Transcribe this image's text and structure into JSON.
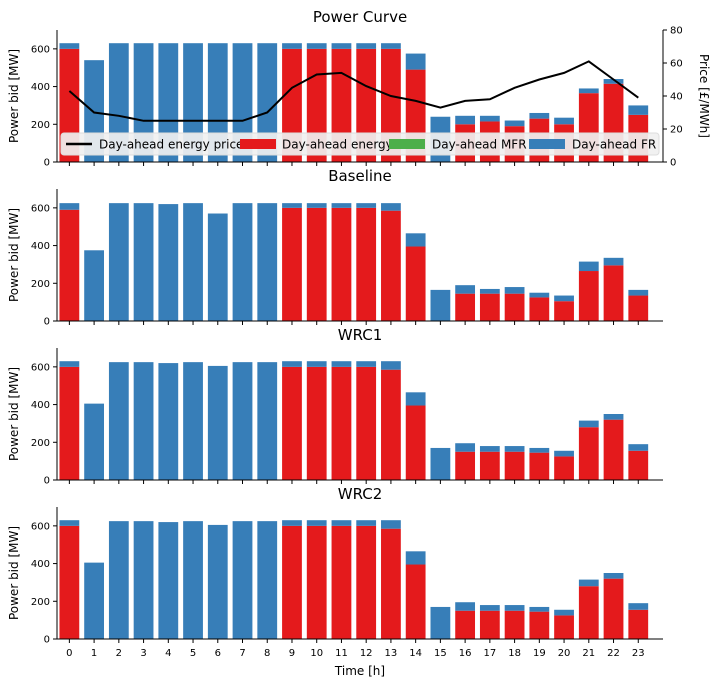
{
  "colors": {
    "energy": "#e41a1c",
    "fr": "#377eb8",
    "mfr": "#4daf4a",
    "price": "#000000",
    "legend_bg": "#f0f0f0"
  },
  "chart_data": [
    {
      "type": "bar",
      "stacked": true,
      "title": "Power Curve",
      "xlabel": "",
      "ylabel": "Power bid [MW]",
      "ylim": [
        0,
        700
      ],
      "yticks": [
        0,
        200,
        400,
        600
      ],
      "categories": [
        "0",
        "1",
        "2",
        "3",
        "4",
        "5",
        "6",
        "7",
        "8",
        "9",
        "10",
        "11",
        "12",
        "13",
        "14",
        "15",
        "16",
        "17",
        "18",
        "19",
        "20",
        "21",
        "22",
        "23"
      ],
      "series": [
        {
          "name": "Day-ahead energy",
          "values": [
            600,
            0,
            0,
            0,
            0,
            0,
            0,
            0,
            0,
            600,
            600,
            600,
            600,
            600,
            490,
            0,
            200,
            215,
            190,
            230,
            200,
            365,
            415,
            250
          ]
        },
        {
          "name": "Day-ahead MFR",
          "values": [
            0,
            0,
            0,
            0,
            0,
            0,
            0,
            0,
            0,
            0,
            0,
            0,
            0,
            0,
            0,
            0,
            0,
            0,
            0,
            0,
            0,
            0,
            0,
            0
          ]
        },
        {
          "name": "Day-ahead FR",
          "values": [
            30,
            540,
            630,
            630,
            630,
            630,
            630,
            630,
            630,
            30,
            30,
            30,
            30,
            30,
            85,
            240,
            45,
            30,
            30,
            30,
            35,
            25,
            25,
            50
          ]
        }
      ],
      "secondary_axis": {
        "ylabel": "Price [£/MWh]",
        "ylim": [
          0,
          80
        ],
        "yticks": [
          0,
          20,
          40,
          60,
          80
        ],
        "series": [
          {
            "name": "Day-ahead energy price",
            "type": "line",
            "values": [
              43,
              30,
              28,
              25,
              25,
              25,
              25,
              25,
              30,
              45,
              53,
              54,
              46,
              40,
              37,
              33,
              37,
              38,
              45,
              50,
              54,
              61,
              50,
              39
            ]
          }
        ]
      },
      "legend": {
        "placement": "lower-center",
        "entries": [
          "Day-ahead energy price",
          "Day-ahead energy",
          "Day-ahead MFR",
          "Day-ahead FR"
        ]
      }
    },
    {
      "type": "bar",
      "stacked": true,
      "title": "Baseline",
      "xlabel": "",
      "ylabel": "Power bid [MW]",
      "ylim": [
        0,
        700
      ],
      "yticks": [
        0,
        200,
        400,
        600
      ],
      "categories": [
        "0",
        "1",
        "2",
        "3",
        "4",
        "5",
        "6",
        "7",
        "8",
        "9",
        "10",
        "11",
        "12",
        "13",
        "14",
        "15",
        "16",
        "17",
        "18",
        "19",
        "20",
        "21",
        "22",
        "23"
      ],
      "series": [
        {
          "name": "Day-ahead energy",
          "values": [
            590,
            0,
            0,
            0,
            0,
            0,
            0,
            0,
            0,
            600,
            600,
            600,
            600,
            585,
            395,
            0,
            145,
            145,
            145,
            125,
            105,
            265,
            295,
            135
          ]
        },
        {
          "name": "Day-ahead MFR",
          "values": [
            0,
            0,
            0,
            0,
            0,
            0,
            0,
            0,
            0,
            0,
            0,
            0,
            0,
            0,
            0,
            0,
            0,
            0,
            0,
            0,
            0,
            0,
            0,
            0
          ]
        },
        {
          "name": "Day-ahead FR",
          "values": [
            35,
            375,
            625,
            625,
            620,
            625,
            570,
            625,
            625,
            25,
            25,
            25,
            25,
            40,
            70,
            165,
            45,
            25,
            35,
            25,
            30,
            50,
            40,
            30
          ]
        }
      ]
    },
    {
      "type": "bar",
      "stacked": true,
      "title": "WRC1",
      "xlabel": "",
      "ylabel": "Power bid [MW]",
      "ylim": [
        0,
        700
      ],
      "yticks": [
        0,
        200,
        400,
        600
      ],
      "categories": [
        "0",
        "1",
        "2",
        "3",
        "4",
        "5",
        "6",
        "7",
        "8",
        "9",
        "10",
        "11",
        "12",
        "13",
        "14",
        "15",
        "16",
        "17",
        "18",
        "19",
        "20",
        "21",
        "22",
        "23"
      ],
      "series": [
        {
          "name": "Day-ahead energy",
          "values": [
            600,
            0,
            0,
            0,
            0,
            0,
            0,
            0,
            0,
            600,
            600,
            600,
            600,
            585,
            395,
            0,
            150,
            150,
            150,
            145,
            125,
            280,
            320,
            155
          ]
        },
        {
          "name": "Day-ahead MFR",
          "values": [
            0,
            0,
            0,
            0,
            0,
            0,
            0,
            0,
            0,
            0,
            0,
            0,
            0,
            0,
            0,
            0,
            0,
            0,
            0,
            0,
            0,
            0,
            0,
            0
          ]
        },
        {
          "name": "Day-ahead FR",
          "values": [
            30,
            405,
            625,
            625,
            620,
            625,
            605,
            625,
            625,
            30,
            30,
            30,
            30,
            45,
            70,
            170,
            45,
            30,
            30,
            25,
            30,
            35,
            30,
            35
          ]
        }
      ]
    },
    {
      "type": "bar",
      "stacked": true,
      "title": "WRC2",
      "xlabel": "Time [h]",
      "ylabel": "Power bid [MW]",
      "ylim": [
        0,
        700
      ],
      "yticks": [
        0,
        200,
        400,
        600
      ],
      "categories": [
        "0",
        "1",
        "2",
        "3",
        "4",
        "5",
        "6",
        "7",
        "8",
        "9",
        "10",
        "11",
        "12",
        "13",
        "14",
        "15",
        "16",
        "17",
        "18",
        "19",
        "20",
        "21",
        "22",
        "23"
      ],
      "series": [
        {
          "name": "Day-ahead energy",
          "values": [
            600,
            0,
            0,
            0,
            0,
            0,
            0,
            0,
            0,
            600,
            600,
            600,
            600,
            585,
            395,
            0,
            150,
            150,
            150,
            145,
            125,
            280,
            320,
            155
          ]
        },
        {
          "name": "Day-ahead MFR",
          "values": [
            0,
            0,
            0,
            0,
            0,
            0,
            0,
            0,
            0,
            0,
            0,
            0,
            0,
            0,
            0,
            0,
            0,
            0,
            0,
            0,
            0,
            0,
            0,
            0
          ]
        },
        {
          "name": "Day-ahead FR",
          "values": [
            30,
            405,
            625,
            625,
            620,
            625,
            605,
            625,
            625,
            30,
            30,
            30,
            30,
            45,
            70,
            170,
            45,
            30,
            30,
            25,
            30,
            35,
            30,
            35
          ]
        }
      ]
    }
  ]
}
